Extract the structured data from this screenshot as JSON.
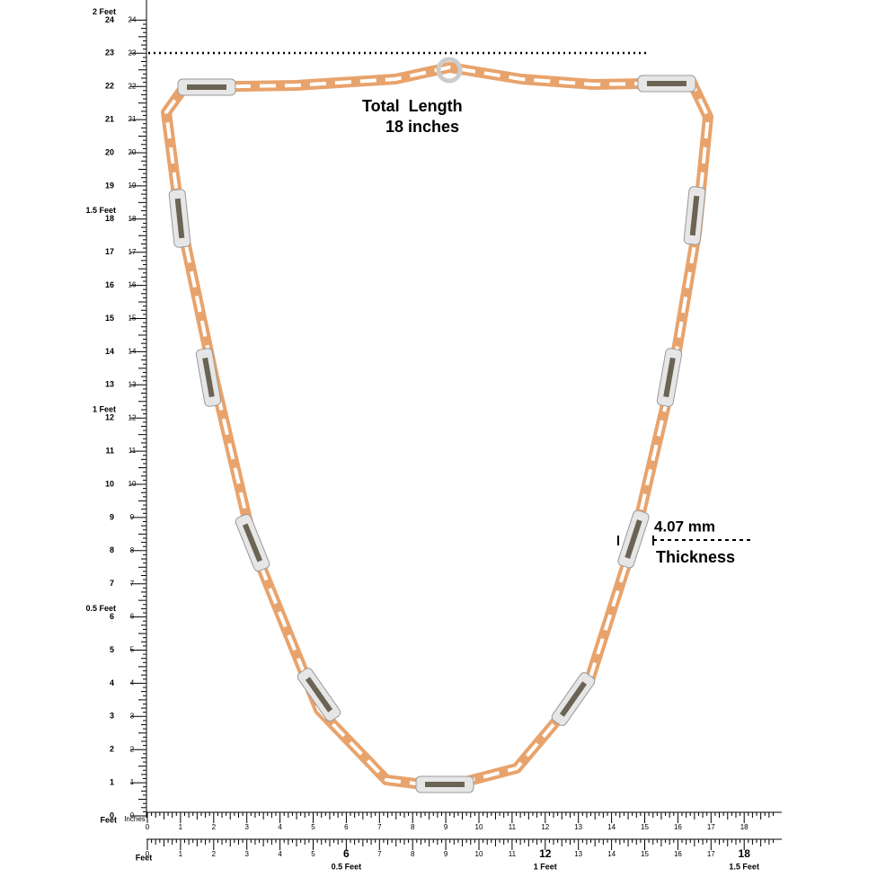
{
  "annotations": {
    "total_length": "Total  Length",
    "length_value": "18 inches",
    "thickness_value": "4.07 mm",
    "thickness_label": "Thickness"
  },
  "left_ruler": {
    "ticks": [
      0,
      1,
      2,
      3,
      4,
      5,
      6,
      7,
      8,
      9,
      10,
      11,
      12,
      13,
      14,
      15,
      16,
      17,
      18,
      19,
      20,
      21,
      22,
      23,
      24
    ],
    "feet": [
      {
        "value": 6,
        "label": "0.5 Feet"
      },
      {
        "value": 12,
        "label": "1 Feet"
      },
      {
        "value": 18,
        "label": "1.5 Feet"
      },
      {
        "value": 24,
        "label": "2 Feet"
      }
    ],
    "unit": "Feet"
  },
  "bottom_ruler": {
    "inch_ticks": [
      0,
      1,
      2,
      3,
      4,
      5,
      6,
      7,
      8,
      9,
      10,
      11,
      12,
      13,
      14,
      15,
      16,
      17,
      18
    ],
    "inch_unit": "Inches",
    "feet_ticks": [
      0,
      1,
      2,
      3,
      4,
      5,
      6,
      7,
      8,
      9,
      10,
      11,
      12,
      13,
      14,
      15,
      16,
      17,
      18
    ],
    "feet": [
      {
        "value": 6,
        "label": "0.5 Feet"
      },
      {
        "value": 12,
        "label": "1 Feet"
      },
      {
        "value": 18,
        "label": "1.5 Feet"
      }
    ],
    "feet_unit": "Feet"
  }
}
